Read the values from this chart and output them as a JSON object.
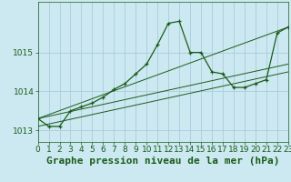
{
  "background_color": "#cce8f0",
  "grid_color": "#aaccdd",
  "line_color": "#1a5c1a",
  "title": "Graphe pression niveau de la mer (hPa)",
  "xlim": [
    0,
    23
  ],
  "ylim": [
    1012.7,
    1016.3
  ],
  "yticks": [
    1013,
    1014,
    1015
  ],
  "xticks": [
    0,
    1,
    2,
    3,
    4,
    5,
    6,
    7,
    8,
    9,
    10,
    11,
    12,
    13,
    14,
    15,
    16,
    17,
    18,
    19,
    20,
    21,
    22,
    23
  ],
  "hours": [
    0,
    1,
    2,
    3,
    4,
    5,
    6,
    7,
    8,
    9,
    10,
    11,
    12,
    13,
    14,
    15,
    16,
    17,
    18,
    19,
    20,
    21,
    22,
    23
  ],
  "line1": [
    1013.3,
    1013.1,
    1013.1,
    1013.5,
    1013.6,
    1013.7,
    1013.85,
    1014.05,
    1014.2,
    1014.45,
    1014.7,
    1015.2,
    1015.75,
    1015.8,
    1015.0,
    1015.0,
    1014.5,
    1014.45,
    1014.1,
    1014.1,
    1014.2,
    1014.3,
    1015.5,
    1015.65
  ],
  "line2_x": [
    0,
    23
  ],
  "line2_y": [
    1013.1,
    1014.5
  ],
  "line3_x": [
    0,
    23
  ],
  "line3_y": [
    1013.3,
    1015.65
  ],
  "line4_x": [
    0,
    23
  ],
  "line4_y": [
    1013.3,
    1014.7
  ],
  "title_fontsize": 8,
  "tick_fontsize": 6.5
}
